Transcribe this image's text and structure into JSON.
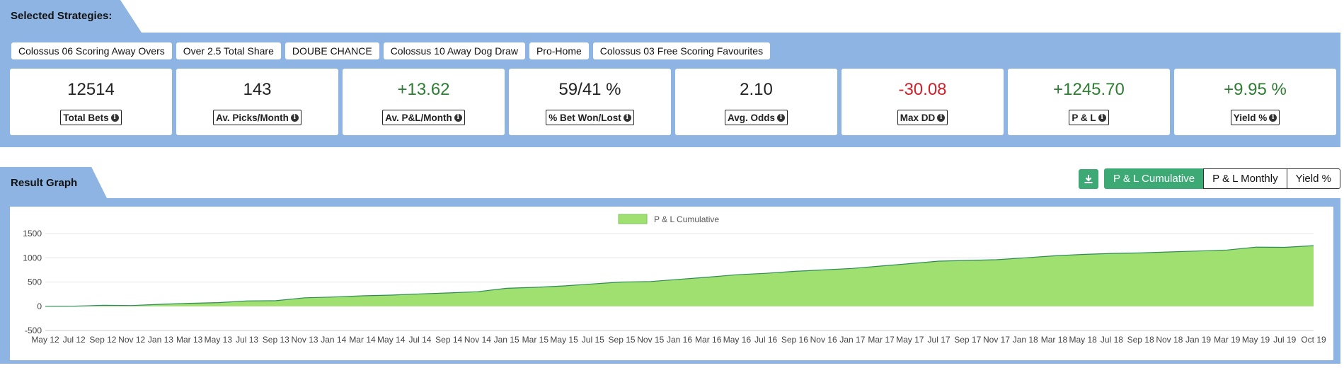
{
  "sections": {
    "strategies_title": "Selected Strategies:",
    "graph_title": "Result Graph"
  },
  "strategies": [
    "Colossus 06 Scoring Away Overs",
    "Over 2.5 Total Share",
    "DOUBE CHANCE",
    "Colossus 10 Away Dog Draw",
    "Pro-Home",
    "Colossus 03 Free Scoring Favourites"
  ],
  "stats": [
    {
      "value": "12514",
      "label": "Total Bets",
      "tone": "neutral"
    },
    {
      "value": "143",
      "label": "Av. Picks/Month",
      "tone": "neutral"
    },
    {
      "value": "+13.62",
      "label": "Av. P&L/Month",
      "tone": "pos"
    },
    {
      "value": "59/41 %",
      "label": "% Bet Won/Lost",
      "tone": "neutral"
    },
    {
      "value": "2.10",
      "label": "Avg. Odds",
      "tone": "neutral"
    },
    {
      "value": "-30.08",
      "label": "Max DD",
      "tone": "neg"
    },
    {
      "value": "+1245.70",
      "label": "P & L",
      "tone": "pos"
    },
    {
      "value": "+9.95 %",
      "label": "Yield %",
      "tone": "pos"
    }
  ],
  "graph_tabs": [
    {
      "label": "P & L Cumulative",
      "active": true
    },
    {
      "label": "P & L Monthly",
      "active": false
    },
    {
      "label": "Yield %",
      "active": false
    }
  ],
  "icons": {
    "download": "download-icon",
    "info": "info-icon"
  },
  "colors": {
    "panel": "#8db4e2",
    "accent": "#3daa76",
    "positive": "#2e7d32",
    "negative": "#d0202a",
    "area_fill": "#9fe070",
    "area_line": "#2e8b57"
  },
  "chart_data": {
    "type": "area",
    "legend": "P & L Cumulative",
    "legend_position": "top",
    "grid": true,
    "ylim": [
      -500,
      1500
    ],
    "yticks": [
      1500,
      1000,
      500,
      0,
      -500
    ],
    "x": [
      "May 12",
      "Jul 12",
      "Sep 12",
      "Nov 12",
      "Jan 13",
      "Mar 13",
      "May 13",
      "Jul 13",
      "Sep 13",
      "Nov 13",
      "Jan 14",
      "Mar 14",
      "May 14",
      "Jul 14",
      "Sep 14",
      "Nov 14",
      "Jan 15",
      "Mar 15",
      "May 15",
      "Jul 15",
      "Sep 15",
      "Nov 15",
      "Jan 16",
      "Mar 16",
      "May 16",
      "Jul 16",
      "Sep 16",
      "Nov 16",
      "Jan 17",
      "Mar 17",
      "May 17",
      "Jul 17",
      "Sep 17",
      "Nov 17",
      "Jan 18",
      "Mar 18",
      "May 18",
      "Jul 18",
      "Sep 18",
      "Nov 18",
      "Jan 19",
      "Mar 19",
      "May 19",
      "Jul 19",
      "Oct 19"
    ],
    "values": [
      0,
      2,
      20,
      15,
      40,
      60,
      75,
      110,
      115,
      175,
      190,
      215,
      230,
      255,
      275,
      300,
      370,
      390,
      420,
      460,
      500,
      510,
      555,
      600,
      650,
      680,
      720,
      750,
      780,
      830,
      880,
      930,
      945,
      960,
      1000,
      1040,
      1070,
      1090,
      1100,
      1120,
      1140,
      1160,
      1220,
      1215,
      1250
    ]
  }
}
